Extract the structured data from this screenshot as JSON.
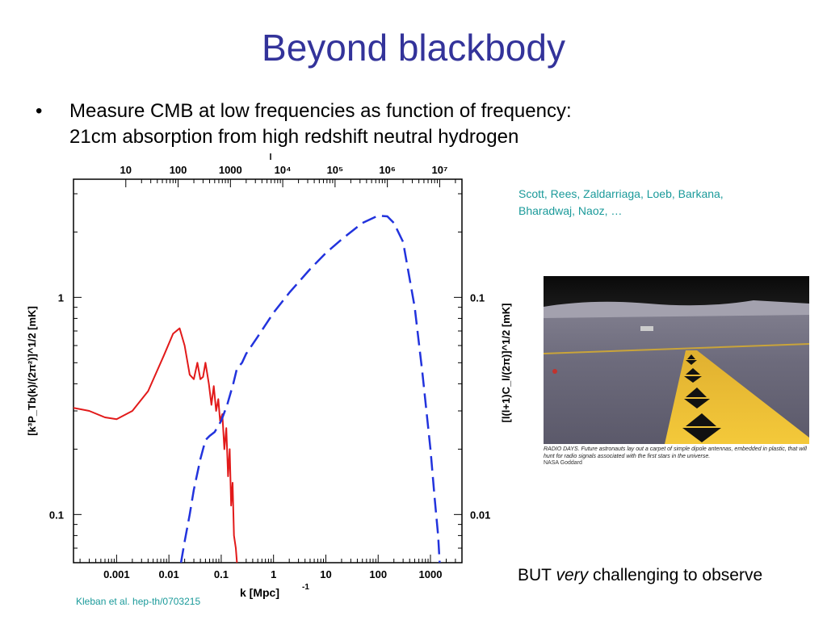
{
  "slide": {
    "title": "Beyond blackbody",
    "bullet_symbol": "•",
    "bullet_line1": "Measure CMB at low frequencies as function of frequency:",
    "bullet_line2": "21cm absorption from high redshift neutral hydrogen",
    "reference_line1": "Scott, Rees, Zaldarriaga, Loeb, Barkana,",
    "reference_line2": "Bharadwaj, Naoz, …",
    "citation": "Kleban et al. hep-th/0703215",
    "but_prefix": "BUT ",
    "but_emphasis": "very",
    "but_suffix": " challenging to observe",
    "photo_caption": "RADIO DAYS. Future astronauts lay out a carpet of simple dipole antennas, embedded in plastic, that will hunt for radio signals associated with the first stars in the universe.",
    "photo_credit": "NASA Goddard"
  },
  "chart_data": {
    "type": "line",
    "xlabel": "k [Mpc]",
    "xlabel_exponent": "-1",
    "top_axis_label": "l",
    "ylabel_left": "[k³P_Tb(k)/(2π²)]^1/2 [mK]",
    "ylabel_right": "[l(l+1)C_l/(2π)]^1/2 [mK]",
    "x_scale": "log",
    "y_scale": "log",
    "xlim": [
      0.00015,
      4000
    ],
    "ylim": [
      0.06,
      3.5
    ],
    "x_tick_labels": [
      "0.001",
      "0.01",
      "0.1",
      "1",
      "10",
      "100",
      "1000"
    ],
    "x_tick_values": [
      0.001,
      0.01,
      0.1,
      1,
      10,
      100,
      1000
    ],
    "top_tick_labels": [
      "10",
      "100",
      "1000",
      "10⁴",
      "10⁵",
      "10⁶",
      "10⁷"
    ],
    "top_tick_values": [
      0.0015,
      0.015,
      0.15,
      1.5,
      15,
      150,
      1500
    ],
    "left_tick_labels": [
      "0.1",
      "1"
    ],
    "left_tick_values": [
      0.1,
      1
    ],
    "right_tick_labels": [
      "0.01",
      "0.1"
    ],
    "right_tick_values": [
      0.1,
      1
    ],
    "series": [
      {
        "color": "#e21a1a",
        "style": "solid",
        "x": [
          0.00015,
          0.0003,
          0.0006,
          0.001,
          0.002,
          0.004,
          0.008,
          0.012,
          0.016,
          0.02,
          0.025,
          0.03,
          0.035,
          0.04,
          0.045,
          0.05,
          0.058,
          0.065,
          0.072,
          0.08,
          0.088,
          0.095,
          0.105,
          0.115,
          0.125,
          0.135,
          0.145,
          0.155,
          0.165,
          0.175,
          0.19,
          0.2
        ],
        "y": [
          0.31,
          0.3,
          0.28,
          0.275,
          0.3,
          0.37,
          0.54,
          0.68,
          0.72,
          0.6,
          0.44,
          0.42,
          0.5,
          0.42,
          0.43,
          0.5,
          0.4,
          0.32,
          0.39,
          0.3,
          0.34,
          0.27,
          0.29,
          0.2,
          0.25,
          0.15,
          0.2,
          0.11,
          0.14,
          0.08,
          0.07,
          0.06
        ]
      },
      {
        "color": "#2233dd",
        "style": "dashed",
        "x": [
          0.017,
          0.02,
          0.025,
          0.03,
          0.04,
          0.05,
          0.06,
          0.075,
          0.1,
          0.13,
          0.17,
          0.2,
          0.25,
          0.3,
          0.5,
          1,
          2,
          5,
          10,
          20,
          50,
          100,
          150,
          200,
          300,
          500,
          700,
          1000,
          1200,
          1400,
          1500
        ],
        "y": [
          0.06,
          0.075,
          0.1,
          0.13,
          0.18,
          0.22,
          0.23,
          0.24,
          0.27,
          0.32,
          0.4,
          0.47,
          0.5,
          0.55,
          0.66,
          0.85,
          1.05,
          1.35,
          1.6,
          1.85,
          2.2,
          2.38,
          2.36,
          2.2,
          1.8,
          0.9,
          0.45,
          0.2,
          0.12,
          0.08,
          0.06
        ]
      }
    ],
    "grid": false
  }
}
